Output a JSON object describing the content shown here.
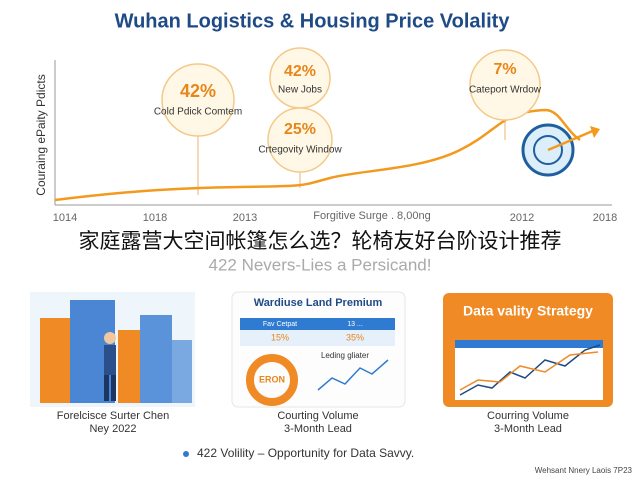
{
  "header": {
    "title": "Wuhan Logistics & Housing Price Volality"
  },
  "chart": {
    "y_label": "Couraing ePaity Pdicts",
    "callouts": [
      {
        "value": "42%",
        "label": "Cold Pdick Comtem"
      },
      {
        "value": "42%",
        "label": "New Jobs"
      },
      {
        "value": "25%",
        "label": "Crtegovity Window"
      },
      {
        "value": "7%",
        "label": "Cateport Wrdow"
      }
    ],
    "x_labels": [
      "1014",
      "1018",
      "2013",
      "Forgitive Surge . 8,00ng",
      "2012",
      "2018"
    ]
  },
  "overlay": {
    "caption": "家庭露营大空间帐篷怎么选？轮椅友好台阶设计推荐",
    "banner": "422 Nevers-Lies a Persicand!"
  },
  "cards": [
    {
      "caption": "Forelcisce Surter Chen",
      "sub": "Ney 2022"
    },
    {
      "title": "Wardiuse Land Premium",
      "cells": [
        "Fav Cetpat",
        "13 ...",
        "15%",
        "35%"
      ],
      "chart_label": "Leding gliater",
      "badge": "ERON",
      "caption": "Courting Volume",
      "sub": "3-Month Lead"
    },
    {
      "title": "Data vality Strategy",
      "caption": "Courring Volume",
      "sub": "3-Month Lead"
    }
  ],
  "footer": {
    "tagline": "422 Volility – Opportunity for Data Savvy.",
    "credit": "Wehsant Nnery Laois 7P23"
  }
}
